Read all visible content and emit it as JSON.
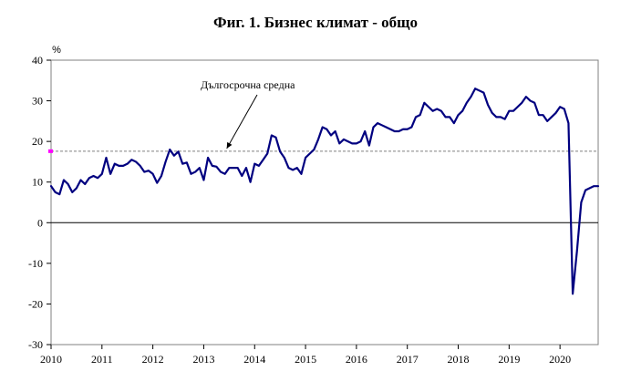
{
  "chart_data": {
    "type": "line",
    "title": "Фиг. 1. Бизнес климат - общо",
    "ylabel": "%",
    "xlabel": "",
    "ylim": [
      -30,
      40
    ],
    "y_ticks": [
      "40",
      "30",
      "20",
      "10",
      "0",
      "-10",
      "-20",
      "-30"
    ],
    "xlim": [
      "2010-01",
      "2020-10"
    ],
    "x_ticks": [
      "2010",
      "2011",
      "2012",
      "2013",
      "2014",
      "2015",
      "2016",
      "2017",
      "2018",
      "2019",
      "2020"
    ],
    "grid": false,
    "series": [
      {
        "name": "",
        "color": "#000080",
        "x": [
          "2010-01",
          "2010-02",
          "2010-03",
          "2010-04",
          "2010-05",
          "2010-06",
          "2010-07",
          "2010-08",
          "2010-09",
          "2010-10",
          "2010-11",
          "2010-12",
          "2011-01",
          "2011-02",
          "2011-03",
          "2011-04",
          "2011-05",
          "2011-06",
          "2011-07",
          "2011-08",
          "2011-09",
          "2011-10",
          "2011-11",
          "2011-12",
          "2012-01",
          "2012-02",
          "2012-03",
          "2012-04",
          "2012-05",
          "2012-06",
          "2012-07",
          "2012-08",
          "2012-09",
          "2012-10",
          "2012-11",
          "2012-12",
          "2013-01",
          "2013-02",
          "2013-03",
          "2013-04",
          "2013-05",
          "2013-06",
          "2013-07",
          "2013-08",
          "2013-09",
          "2013-10",
          "2013-11",
          "2013-12",
          "2014-01",
          "2014-02",
          "2014-03",
          "2014-04",
          "2014-05",
          "2014-06",
          "2014-07",
          "2014-08",
          "2014-09",
          "2014-10",
          "2014-11",
          "2014-12",
          "2015-01",
          "2015-02",
          "2015-03",
          "2015-04",
          "2015-05",
          "2015-06",
          "2015-07",
          "2015-08",
          "2015-09",
          "2015-10",
          "2015-11",
          "2015-12",
          "2016-01",
          "2016-02",
          "2016-03",
          "2016-04",
          "2016-05",
          "2016-06",
          "2016-07",
          "2016-08",
          "2016-09",
          "2016-10",
          "2016-11",
          "2016-12",
          "2017-01",
          "2017-02",
          "2017-03",
          "2017-04",
          "2017-05",
          "2017-06",
          "2017-07",
          "2017-08",
          "2017-09",
          "2017-10",
          "2017-11",
          "2017-12",
          "2018-01",
          "2018-02",
          "2018-03",
          "2018-04",
          "2018-05",
          "2018-06",
          "2018-07",
          "2018-08",
          "2018-09",
          "2018-10",
          "2018-11",
          "2018-12",
          "2019-01",
          "2019-02",
          "2019-03",
          "2019-04",
          "2019-05",
          "2019-06",
          "2019-07",
          "2019-08",
          "2019-09",
          "2019-10",
          "2019-11",
          "2019-12",
          "2020-01",
          "2020-02",
          "2020-03",
          "2020-04",
          "2020-05",
          "2020-06",
          "2020-07",
          "2020-08",
          "2020-09",
          "2020-10"
        ],
        "values": [
          9.0,
          7.5,
          7.0,
          10.5,
          9.5,
          7.5,
          8.5,
          10.5,
          9.5,
          11.0,
          11.5,
          11.0,
          12.0,
          16.0,
          12.0,
          14.5,
          14.0,
          14.0,
          14.5,
          15.5,
          15.0,
          14.0,
          12.5,
          12.8,
          12.0,
          9.8,
          11.5,
          15.0,
          18.0,
          16.5,
          17.5,
          14.5,
          14.8,
          12.0,
          12.5,
          13.5,
          10.5,
          16.0,
          14.0,
          13.8,
          12.5,
          12.0,
          13.5,
          13.5,
          13.5,
          11.5,
          13.5,
          10.0,
          14.5,
          14.0,
          15.5,
          17.0,
          21.5,
          21.0,
          17.5,
          16.0,
          13.5,
          13.0,
          13.5,
          12.0,
          16.0,
          17.0,
          18.0,
          20.5,
          23.5,
          23.0,
          21.5,
          22.5,
          19.5,
          20.5,
          20.0,
          19.5,
          19.5,
          20.0,
          22.5,
          19.0,
          23.5,
          24.5,
          24.0,
          23.5,
          23.0,
          22.5,
          22.5,
          23.0,
          23.0,
          23.5,
          26.0,
          26.5,
          29.5,
          28.5,
          27.5,
          28.0,
          27.5,
          26.0,
          26.0,
          24.5,
          26.5,
          27.5,
          29.5,
          31.0,
          33.0,
          32.5,
          32.0,
          29.0,
          27.0,
          26.0,
          26.0,
          25.5,
          27.5,
          27.5,
          28.5,
          29.5,
          31.0,
          30.0,
          29.5,
          26.5,
          26.5,
          25.0,
          26.0,
          27.0,
          28.5,
          28.0,
          24.5,
          -17.5,
          -7.0,
          5.0,
          8.0,
          8.5,
          9.0,
          9.0
        ]
      }
    ],
    "reference_line": {
      "label": "Дългосрочна средна",
      "value": 17.6,
      "style": "dashed",
      "color": "#808080",
      "marker_color": "#ff00ff",
      "arrow_target_x": "2013-06"
    },
    "zero_line": true
  }
}
